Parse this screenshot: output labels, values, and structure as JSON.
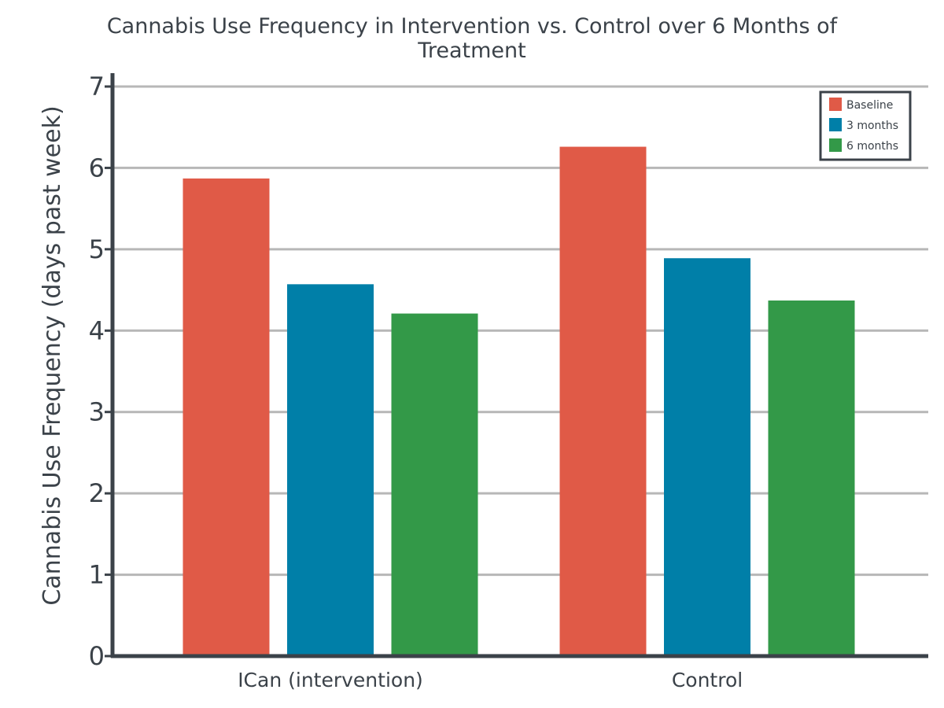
{
  "chart_data": {
    "type": "bar",
    "title": "Cannabis Use Frequency in Intervention vs. Control over 6 Months of Treatment",
    "title_lines": [
      "Cannabis Use Frequency in Intervention vs. Control over 6 Months of",
      "Treatment"
    ],
    "ylabel": "Cannabis Use Frequency (days past week)",
    "xlabel": "",
    "categories": [
      "ICan (intervention)",
      "Control"
    ],
    "series": [
      {
        "name": "Baseline",
        "color": "#e05a47",
        "values": [
          5.87,
          6.26
        ]
      },
      {
        "name": "3 months",
        "color": "#007fa8",
        "values": [
          4.57,
          4.89
        ]
      },
      {
        "name": "6 months",
        "color": "#339948",
        "values": [
          4.21,
          4.37
        ]
      }
    ],
    "ylim": [
      0,
      7
    ],
    "yticks": [
      0,
      1,
      2,
      3,
      4,
      5,
      6,
      7
    ],
    "grid": true,
    "legend": "top-right",
    "axis_color": "#3b4249",
    "grid_color": "#b7b7b7"
  }
}
